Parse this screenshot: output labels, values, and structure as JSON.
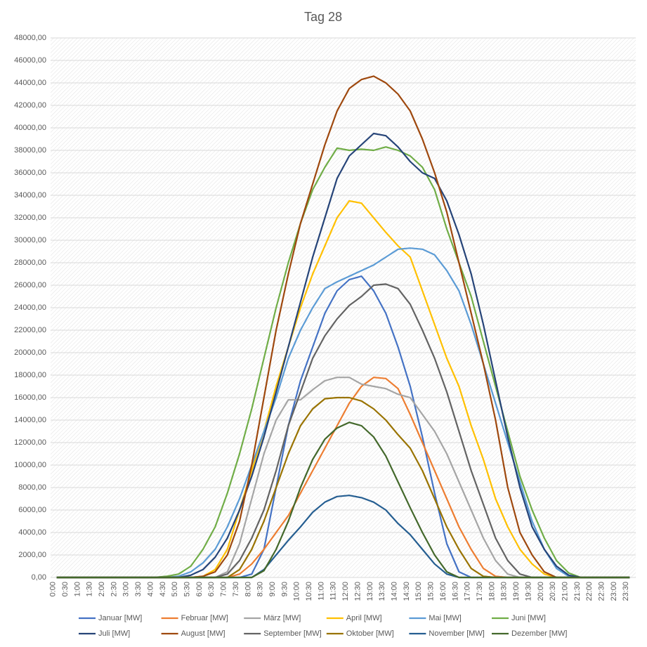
{
  "chart_data": {
    "type": "line",
    "title": "Tag 28",
    "categories": [
      "0:00",
      "0:30",
      "1:00",
      "1:30",
      "2:00",
      "2:30",
      "3:00",
      "3:30",
      "4:00",
      "4:30",
      "5:00",
      "5:30",
      "6:00",
      "6:30",
      "7:00",
      "7:30",
      "8:00",
      "8:30",
      "9:00",
      "9:30",
      "10:00",
      "10:30",
      "11:00",
      "11:30",
      "12:00",
      "12:30",
      "13:00",
      "13:30",
      "14:00",
      "14:30",
      "15:00",
      "15:30",
      "16:00",
      "16:30",
      "17:00",
      "17:30",
      "18:00",
      "18:30",
      "19:00",
      "19:30",
      "20:00",
      "20:30",
      "21:00",
      "21:30",
      "22:00",
      "22:30",
      "23:00",
      "23:30"
    ],
    "ylim": [
      0,
      48000
    ],
    "yticks": [
      {
        "value": 0,
        "label": "0,00"
      },
      {
        "value": 2000,
        "label": "2000,00"
      },
      {
        "value": 4000,
        "label": "4000,00"
      },
      {
        "value": 6000,
        "label": "6000,00"
      },
      {
        "value": 8000,
        "label": "8000,00"
      },
      {
        "value": 10000,
        "label": "10000,00"
      },
      {
        "value": 12000,
        "label": "12000,00"
      },
      {
        "value": 14000,
        "label": "14000,00"
      },
      {
        "value": 16000,
        "label": "16000,00"
      },
      {
        "value": 18000,
        "label": "18000,00"
      },
      {
        "value": 20000,
        "label": "20000,00"
      },
      {
        "value": 22000,
        "label": "22000,00"
      },
      {
        "value": 24000,
        "label": "24000,00"
      },
      {
        "value": 26000,
        "label": "26000,00"
      },
      {
        "value": 28000,
        "label": "28000,00"
      },
      {
        "value": 30000,
        "label": "30000,00"
      },
      {
        "value": 32000,
        "label": "32000,00"
      },
      {
        "value": 34000,
        "label": "34000,00"
      },
      {
        "value": 36000,
        "label": "36000,00"
      },
      {
        "value": 38000,
        "label": "38000,00"
      },
      {
        "value": 40000,
        "label": "40000,00"
      },
      {
        "value": 42000,
        "label": "42000,00"
      },
      {
        "value": 44000,
        "label": "44000,00"
      },
      {
        "value": 46000,
        "label": "46000,00"
      },
      {
        "value": 48000,
        "label": "48000,00"
      }
    ],
    "legend": "bottom",
    "series": [
      {
        "name": "Januar [MW]",
        "color": "#4472c4",
        "values": [
          0,
          0,
          0,
          0,
          0,
          0,
          0,
          0,
          0,
          0,
          0,
          0,
          0,
          0,
          0,
          0,
          300,
          2500,
          8000,
          13500,
          17500,
          20500,
          23500,
          25500,
          26500,
          26800,
          25500,
          23500,
          20500,
          17000,
          12500,
          7500,
          3000,
          500,
          0,
          0,
          0,
          0,
          0,
          0,
          0,
          0,
          0,
          0,
          0,
          0,
          0,
          0
        ]
      },
      {
        "name": "Februar [MW]",
        "color": "#ed7d31",
        "values": [
          0,
          0,
          0,
          0,
          0,
          0,
          0,
          0,
          0,
          0,
          0,
          0,
          0,
          0,
          0,
          300,
          1200,
          2500,
          4000,
          5500,
          7500,
          9500,
          11500,
          13500,
          15500,
          17000,
          17800,
          17700,
          16800,
          14500,
          12000,
          9500,
          7000,
          4500,
          2500,
          800,
          100,
          0,
          0,
          0,
          0,
          0,
          0,
          0,
          0,
          0,
          0,
          0
        ]
      },
      {
        "name": "März [MW]",
        "color": "#a5a5a5",
        "values": [
          0,
          0,
          0,
          0,
          0,
          0,
          0,
          0,
          0,
          0,
          0,
          0,
          0,
          0,
          500,
          3000,
          7000,
          11000,
          14000,
          15800,
          15800,
          16700,
          17500,
          17800,
          17800,
          17200,
          17000,
          16800,
          16300,
          16000,
          14500,
          13000,
          11000,
          8500,
          6000,
          3500,
          1500,
          300,
          0,
          0,
          0,
          0,
          0,
          0,
          0,
          0,
          0,
          0
        ]
      },
      {
        "name": "April [MW]",
        "color": "#ffc000",
        "values": [
          0,
          0,
          0,
          0,
          0,
          0,
          0,
          0,
          0,
          0,
          0,
          0,
          100,
          700,
          2500,
          6000,
          9500,
          13000,
          17000,
          20500,
          24000,
          27000,
          29500,
          32000,
          33500,
          33300,
          32000,
          30700,
          29500,
          28500,
          25500,
          22500,
          19500,
          17000,
          13500,
          10500,
          7000,
          4500,
          2500,
          1200,
          300,
          0,
          0,
          0,
          0,
          0,
          0,
          0
        ]
      },
      {
        "name": "Mai [MW]",
        "color": "#5b9bd5",
        "values": [
          0,
          0,
          0,
          0,
          0,
          0,
          0,
          0,
          0,
          0,
          100,
          500,
          1300,
          2500,
          4500,
          7000,
          10000,
          13000,
          16000,
          19500,
          22000,
          24000,
          25700,
          26300,
          26800,
          27300,
          27800,
          28500,
          29200,
          29300,
          29200,
          28700,
          27300,
          25500,
          22500,
          19000,
          15500,
          12000,
          8500,
          5000,
          2500,
          800,
          100,
          0,
          0,
          0,
          0,
          0
        ]
      },
      {
        "name": "Juni [MW]",
        "color": "#70ad47",
        "values": [
          0,
          0,
          0,
          0,
          0,
          0,
          0,
          0,
          0,
          100,
          300,
          1000,
          2500,
          4500,
          7500,
          11000,
          15000,
          19500,
          24000,
          28000,
          31500,
          34500,
          36500,
          38200,
          38000,
          38100,
          38000,
          38300,
          38000,
          37500,
          36500,
          34500,
          31000,
          28000,
          25000,
          21000,
          17000,
          13000,
          9000,
          6000,
          3500,
          1500,
          400,
          0,
          0,
          0,
          0,
          0
        ]
      },
      {
        "name": "Juli [MW]",
        "color": "#264478",
        "values": [
          0,
          0,
          0,
          0,
          0,
          0,
          0,
          0,
          0,
          0,
          0,
          200,
          700,
          1800,
          3500,
          6000,
          9000,
          12500,
          16500,
          20500,
          24500,
          28500,
          32000,
          35500,
          37500,
          38500,
          39500,
          39300,
          38300,
          37000,
          36000,
          35500,
          33500,
          30500,
          27000,
          22500,
          17500,
          12500,
          8000,
          4500,
          2500,
          1000,
          200,
          0,
          0,
          0,
          0,
          0
        ]
      },
      {
        "name": "August [MW]",
        "color": "#9e480e",
        "values": [
          0,
          0,
          0,
          0,
          0,
          0,
          0,
          0,
          0,
          0,
          0,
          0,
          100,
          500,
          2000,
          5000,
          10000,
          16000,
          22000,
          27000,
          31500,
          35000,
          38500,
          41500,
          43500,
          44300,
          44600,
          44000,
          43000,
          41500,
          39000,
          36000,
          32500,
          28000,
          23500,
          19000,
          14000,
          8000,
          4000,
          2000,
          500,
          0,
          0,
          0,
          0,
          0,
          0,
          0
        ]
      },
      {
        "name": "September [MW]",
        "color": "#636363",
        "values": [
          0,
          0,
          0,
          0,
          0,
          0,
          0,
          0,
          0,
          0,
          0,
          0,
          0,
          0,
          300,
          1500,
          3500,
          6000,
          9500,
          13500,
          16500,
          19500,
          21500,
          23000,
          24200,
          25000,
          26000,
          26100,
          25700,
          24300,
          22000,
          19500,
          16500,
          13000,
          9500,
          6500,
          3500,
          1500,
          300,
          0,
          0,
          0,
          0,
          0,
          0,
          0,
          0,
          0
        ]
      },
      {
        "name": "Oktober [MW]",
        "color": "#997300",
        "values": [
          0,
          0,
          0,
          0,
          0,
          0,
          0,
          0,
          0,
          0,
          0,
          0,
          0,
          0,
          0,
          700,
          2500,
          5000,
          8000,
          11000,
          13500,
          15000,
          15900,
          16000,
          16000,
          15700,
          15000,
          14000,
          12700,
          11500,
          9500,
          7000,
          4500,
          2500,
          800,
          100,
          0,
          0,
          0,
          0,
          0,
          0,
          0,
          0,
          0,
          0,
          0,
          0
        ]
      },
      {
        "name": "November [MW]",
        "color": "#255e91",
        "values": [
          0,
          0,
          0,
          0,
          0,
          0,
          0,
          0,
          0,
          0,
          0,
          0,
          0,
          0,
          0,
          0,
          0,
          700,
          2000,
          3300,
          4500,
          5800,
          6700,
          7200,
          7300,
          7100,
          6700,
          6000,
          4800,
          3800,
          2500,
          1200,
          300,
          0,
          0,
          0,
          0,
          0,
          0,
          0,
          0,
          0,
          0,
          0,
          0,
          0,
          0,
          0
        ]
      },
      {
        "name": "Dezember [MW]",
        "color": "#43682b",
        "values": [
          0,
          0,
          0,
          0,
          0,
          0,
          0,
          0,
          0,
          0,
          0,
          0,
          0,
          0,
          0,
          0,
          0,
          600,
          2500,
          5000,
          8000,
          10500,
          12300,
          13300,
          13800,
          13500,
          12500,
          10800,
          8500,
          6200,
          4000,
          2000,
          500,
          0,
          0,
          0,
          0,
          0,
          0,
          0,
          0,
          0,
          0,
          0,
          0,
          0,
          0,
          0
        ]
      }
    ]
  }
}
